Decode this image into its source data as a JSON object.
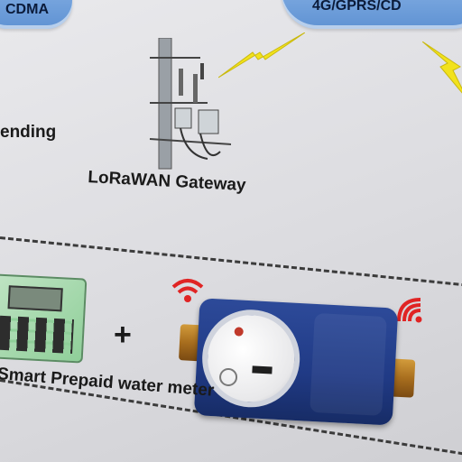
{
  "top": {
    "left_cloud_label": "CDMA",
    "right_cloud_label": "4G/GPRS/CD"
  },
  "side_text": "ending",
  "gateway": {
    "label": "LoRaWAN Gateway"
  },
  "bottom": {
    "plus": "+",
    "meter_label": "Smart Prepaid water meter"
  },
  "colors": {
    "cloud": "#7aa8e0",
    "bolt": "#f2e21c",
    "wifi": "#e02424",
    "meter_body": "#223d8a",
    "dash": "#3b3b3b"
  },
  "icons": [
    "lightning-bolt-icon",
    "wifi-signal-icon",
    "antenna-tower-icon"
  ]
}
